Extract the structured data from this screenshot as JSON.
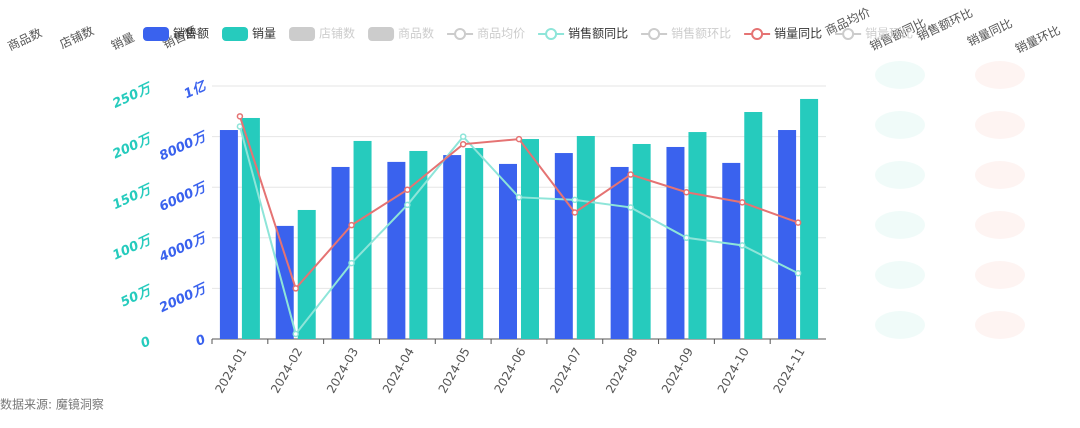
{
  "chart_data": {
    "type": "bar-line",
    "source": "数据来源: 魔镜洞察",
    "axis_names_left": [
      "商品数",
      "店铺数",
      "销量",
      "销售额"
    ],
    "axis_names_right": [
      "商品均价",
      "销售额同比",
      "销售额环比",
      "销量同比",
      "销量环比"
    ],
    "categories": [
      "2024-01",
      "2024-02",
      "2024-03",
      "2024-04",
      "2024-05",
      "2024-06",
      "2024-07",
      "2024-08",
      "2024-09",
      "2024-10",
      "2024-11"
    ],
    "ylim": [
      0,
      100000000
    ],
    "yticks": [
      0,
      {
        "value": 20000000,
        "label": "2000万"
      },
      {
        "value": 40000000,
        "label": "4000万"
      },
      {
        "value": 60000000,
        "label": "6000万"
      },
      {
        "value": 80000000,
        "label": "8000万"
      },
      {
        "value": 100000000,
        "label": "1亿"
      }
    ],
    "y2lim": [
      0,
      2500000
    ],
    "y2ticks": [
      0,
      {
        "value": 500000,
        "label": "50万"
      },
      {
        "value": 1000000,
        "label": "100万"
      },
      {
        "value": 1500000,
        "label": "150万"
      },
      {
        "value": 2000000,
        "label": "200万"
      },
      {
        "value": 2500000,
        "label": "250万"
      }
    ],
    "y3lim": [
      0,
      100
    ],
    "grid": true,
    "series": [
      {
        "name": "销售额",
        "type": "bar",
        "color": "#3a62ee",
        "values": [
          82600000,
          44700000,
          68000000,
          70000000,
          72700000,
          69200000,
          73500000,
          68000000,
          75900000,
          69600000,
          82600000
        ]
      },
      {
        "name": "销量",
        "type": "bar",
        "axis": "y2",
        "color": "#26cbbd",
        "values": [
          2184000,
          1275000,
          1957000,
          1858000,
          1887000,
          1976000,
          2006000,
          1927000,
          2045000,
          2243000,
          2372000
        ]
      },
      {
        "name": "店铺数",
        "type": "bar",
        "color": "#cccccc",
        "visible": false
      },
      {
        "name": "商品数",
        "type": "bar",
        "color": "#cccccc",
        "visible": false
      },
      {
        "name": "商品均价",
        "type": "line",
        "color": "#cccccc",
        "visible": false
      },
      {
        "name": "销售额同比",
        "type": "line",
        "axis": "y3",
        "color": "#8ee5d9",
        "values": [
          84,
          2,
          30,
          53,
          80,
          56,
          55,
          52,
          40,
          37,
          26
        ]
      },
      {
        "name": "销售额环比",
        "type": "line",
        "color": "#cccccc",
        "visible": false
      },
      {
        "name": "销量同比",
        "type": "line",
        "axis": "y3",
        "color": "#e57373",
        "values": [
          88,
          20,
          45,
          59,
          77,
          79,
          50,
          65,
          58,
          54,
          46
        ]
      },
      {
        "name": "销量环比",
        "type": "line",
        "color": "#cccccc",
        "visible": false
      }
    ]
  }
}
